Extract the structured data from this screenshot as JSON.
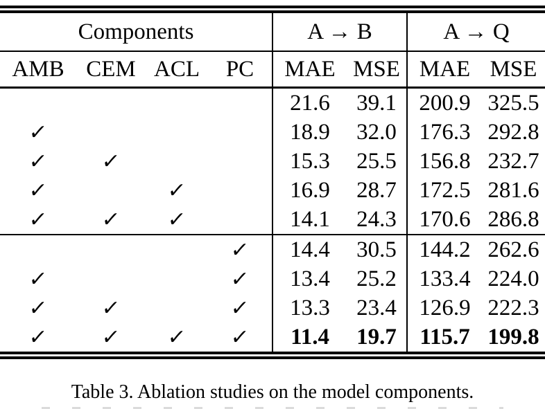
{
  "colors": {
    "background": "#ffffff",
    "text": "#000000",
    "rule": "#000000"
  },
  "table": {
    "header": {
      "components": "Components",
      "group_ab": "A → B",
      "group_aq": "A → Q",
      "columns": [
        "AMB",
        "CEM",
        "ACL",
        "PC",
        "MAE",
        "MSE",
        "MAE",
        "MSE"
      ]
    },
    "checkmark_glyph": "✓",
    "blocks": [
      {
        "rows": [
          {
            "marks": [
              "",
              "",
              "",
              ""
            ],
            "values": [
              "21.6",
              "39.1",
              "200.9",
              "325.5"
            ],
            "bold": false
          },
          {
            "marks": [
              "✓",
              "",
              "",
              ""
            ],
            "values": [
              "18.9",
              "32.0",
              "176.3",
              "292.8"
            ],
            "bold": false
          },
          {
            "marks": [
              "✓",
              "✓",
              "",
              ""
            ],
            "values": [
              "15.3",
              "25.5",
              "156.8",
              "232.7"
            ],
            "bold": false
          },
          {
            "marks": [
              "✓",
              "",
              "✓",
              ""
            ],
            "values": [
              "16.9",
              "28.7",
              "172.5",
              "281.6"
            ],
            "bold": false
          },
          {
            "marks": [
              "✓",
              "✓",
              "✓",
              ""
            ],
            "values": [
              "14.1",
              "24.3",
              "170.6",
              "286.8"
            ],
            "bold": false
          }
        ]
      },
      {
        "rows": [
          {
            "marks": [
              "",
              "",
              "",
              "✓"
            ],
            "values": [
              "14.4",
              "30.5",
              "144.2",
              "262.6"
            ],
            "bold": false
          },
          {
            "marks": [
              "✓",
              "",
              "",
              "✓"
            ],
            "values": [
              "13.4",
              "25.2",
              "133.4",
              "224.0"
            ],
            "bold": false
          },
          {
            "marks": [
              "✓",
              "✓",
              "",
              "✓"
            ],
            "values": [
              "13.3",
              "23.4",
              "126.9",
              "222.3"
            ],
            "bold": false
          },
          {
            "marks": [
              "✓",
              "✓",
              "✓",
              "✓"
            ],
            "values": [
              "11.4",
              "19.7",
              "115.7",
              "199.8"
            ],
            "bold": true
          }
        ]
      }
    ]
  },
  "caption": "Table 3. Ablation studies on the model components."
}
